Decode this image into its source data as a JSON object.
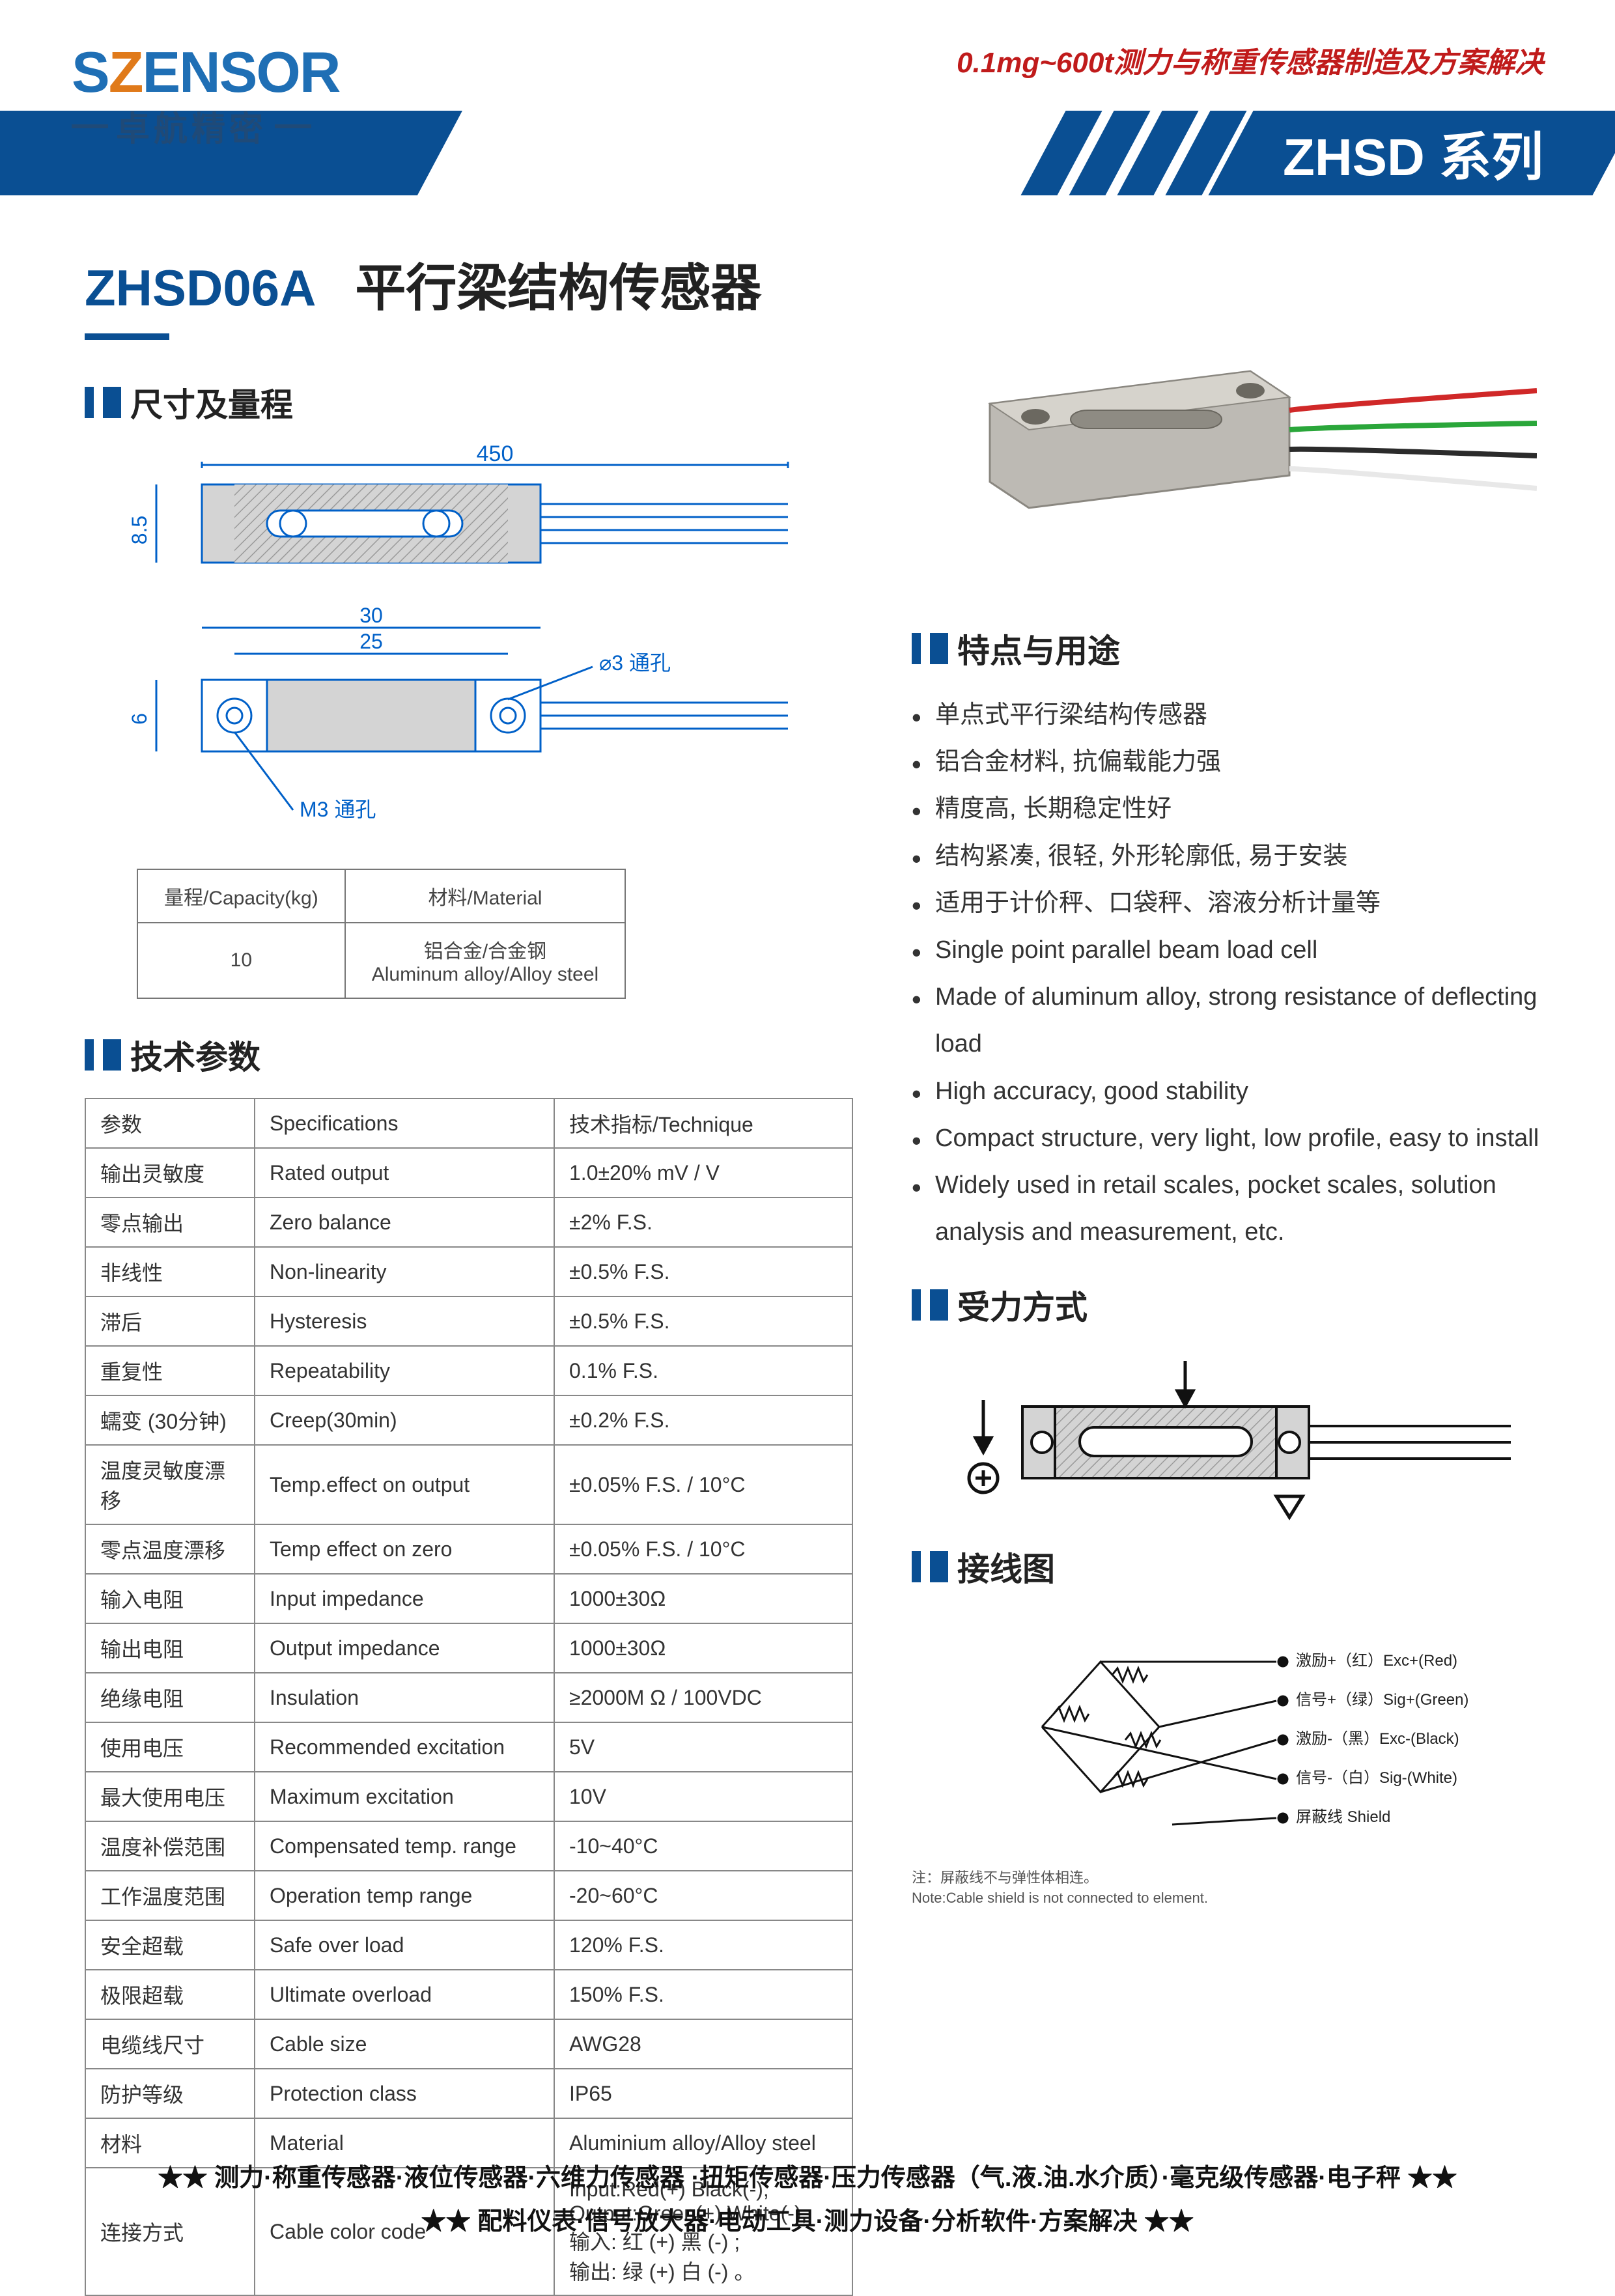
{
  "header": {
    "logo_s1": "S",
    "logo_s2": "Z",
    "logo_rest": "ENSOR",
    "logo_sub": "卓航精密",
    "tagline": "0.1mg~600t测力与称重传感器制造及方案解决",
    "series": "ZHSD 系列"
  },
  "title": {
    "model": "ZHSD06A",
    "name": "平行梁结构传感器"
  },
  "sections": {
    "dim": "尺寸及量程",
    "spec": "技术参数",
    "feat": "特点与用途",
    "force": "受力方式",
    "wiring": "接线图"
  },
  "dim_drawing": {
    "colors": {
      "outline": "#0060c8",
      "fill": "#d4d4d4",
      "hatch": "#b8b8b8"
    },
    "side_view": {
      "length": 450,
      "height": 8.5
    },
    "top_view": {
      "w_outer": 30,
      "w_inner": 25,
      "h": 6,
      "hole_dia_label": "⌀3 通孔",
      "thread_label": "M3 通孔"
    }
  },
  "capacity_table": {
    "headers": [
      "量程/Capacity(kg)",
      "材料/Material"
    ],
    "row": [
      "10",
      "铝合金/合金钢\nAluminum alloy/Alloy steel"
    ]
  },
  "spec_table": {
    "headers": [
      "参数",
      "Specifications",
      "技术指标/Technique"
    ],
    "rows": [
      [
        "输出灵敏度",
        "Rated output",
        "1.0±20%  mV / V"
      ],
      [
        "零点输出",
        "Zero balance",
        "±2% F.S."
      ],
      [
        "非线性",
        "Non-linearity",
        "±0.5% F.S."
      ],
      [
        "滞后",
        "Hysteresis",
        "±0.5% F.S."
      ],
      [
        "重复性",
        "Repeatability",
        "0.1% F.S."
      ],
      [
        "蠕变 (30分钟)",
        "Creep(30min)",
        "±0.2% F.S."
      ],
      [
        "温度灵敏度漂移",
        "Temp.effect on output",
        "±0.05% F.S. / 10°C"
      ],
      [
        "零点温度漂移",
        "Temp effect on zero",
        "±0.05% F.S. / 10°C"
      ],
      [
        "输入电阻",
        "Input impedance",
        "1000±30Ω"
      ],
      [
        "输出电阻",
        "Output impedance",
        "1000±30Ω"
      ],
      [
        "绝缘电阻",
        "Insulation",
        "≥2000M Ω / 100VDC"
      ],
      [
        "使用电压",
        "Recommended excitation",
        "5V"
      ],
      [
        "最大使用电压",
        "Maximum excitation",
        "10V"
      ],
      [
        "温度补偿范围",
        "Compensated temp. range",
        "-10~40°C"
      ],
      [
        "工作温度范围",
        "Operation temp range",
        "-20~60°C"
      ],
      [
        "安全超载",
        "Safe over load",
        "120% F.S."
      ],
      [
        "极限超载",
        "Ultimate overload",
        "150% F.S."
      ],
      [
        "电缆线尺寸",
        "Cable size",
        "AWG28"
      ],
      [
        "防护等级",
        "Protection class",
        "IP65"
      ],
      [
        "材料",
        "Material",
        "Aluminium alloy/Alloy steel"
      ],
      [
        "连接方式",
        "Cable color code",
        "Input:Red(+)       Black(-);\nOutput:Green(+)    White(-);\n输入: 红 (+)            黑 (-) ;\n输出: 绿 (+)            白 (-) 。"
      ]
    ]
  },
  "features": [
    "单点式平行梁结构传感器",
    "铝合金材料, 抗偏载能力强",
    "精度高, 长期稳定性好",
    "结构紧凑, 很轻, 外形轮廓低, 易于安装",
    "适用于计价秤、口袋秤、溶液分析计量等",
    "Single point parallel beam load cell",
    "Made of aluminum alloy, strong resistance of deflecting load",
    "High accuracy, good stability",
    "Compact structure, very light, low profile, easy to install",
    "Widely used in retail scales, pocket scales, solution analysis and measurement, etc."
  ],
  "wiring_labels": [
    "激励+（红）Exc+(Red)",
    "信号+（绿）Sig+(Green)",
    "激励-（黑）Exc-(Black)",
    "信号-（白）Sig-(White)",
    "屏蔽线 Shield"
  ],
  "wiring_note1": "注：屏蔽线不与弹性体相连。",
  "wiring_note2": "Note:Cable shield is not connected to element.",
  "product_render": {
    "body_color": "#bdbab4",
    "wire_colors": [
      "#d02828",
      "#2aa63a",
      "#2b2b2b",
      "#e8e8e8"
    ]
  },
  "footer": {
    "line1": "★★  测力·称重传感器·液位传感器·六维力传感器 ·扭矩传感器·压力传感器（气.液.油.水介质）·毫克级传感器·电子秤  ★★",
    "line2": "★★  配料仪表·信号放大器·电动工具·测力设备·分析软件·方案解决  ★★"
  }
}
